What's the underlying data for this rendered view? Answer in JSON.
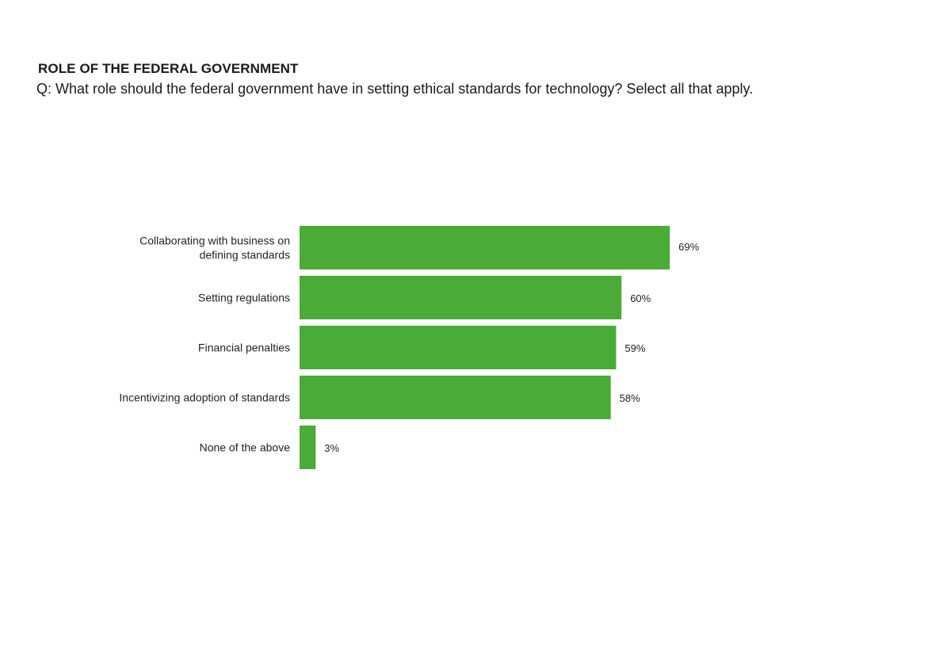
{
  "header": {
    "title": "ROLE OF THE FEDERAL GOVERNMENT",
    "subtitle": "Q: What role should the federal government have in setting ethical standards for technology? Select all that apply."
  },
  "chart_data": {
    "type": "bar",
    "orientation": "horizontal",
    "title": "ROLE OF THE FEDERAL GOVERNMENT",
    "subtitle": "Q: What role should the federal government have in setting ethical standards for technology? Select all that apply.",
    "categories": [
      [
        "Collaborating with business on",
        "defining standards"
      ],
      [
        "Setting regulations"
      ],
      [
        "Financial penalties"
      ],
      [
        "Incentivizing adoption of standards"
      ],
      [
        "None of the above"
      ]
    ],
    "values": [
      69,
      60,
      59,
      58,
      3
    ],
    "value_labels": [
      "69%",
      "60%",
      "59%",
      "58%",
      "3%"
    ],
    "unit": "%",
    "xlim": [
      0,
      100
    ],
    "grid": false,
    "legend": "none",
    "bar_color": "#4aab36"
  }
}
